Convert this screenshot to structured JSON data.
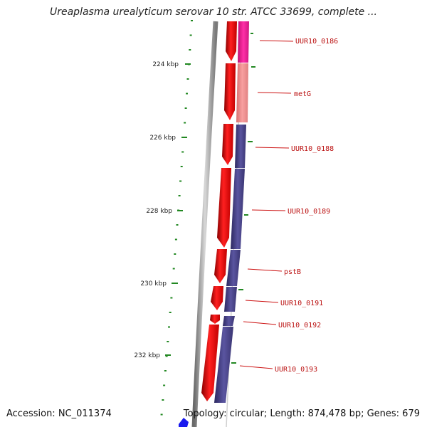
{
  "title": "Ureaplasma urealyticum serovar 10 str. ATCC 33699, complete ...",
  "footer": {
    "accession": "Accession: NC_011374",
    "stats": "Topology: circular; Length: 874,478 bp; Genes: 679"
  },
  "colors": {
    "forward_gene": "#ee1111",
    "reverse_gene": "#48438a",
    "magenta_gene": "#f0209a",
    "salmon_gene": "#f08c8c",
    "backbone": "#8a8a8a",
    "tick": "#228822",
    "label_line": "#cc1111",
    "label_text": "#bb1111",
    "blue_marker": "#1a1aee"
  },
  "ruler": {
    "ticks": [
      "224 kbp",
      "226 kbp",
      "228 kbp",
      "230 kbp",
      "232 kbp"
    ]
  },
  "genes": [
    {
      "label": "UUR10_0186",
      "color": "magenta"
    },
    {
      "label": "metG",
      "color": "salmon"
    },
    {
      "label": "UUR10_0188",
      "color": "reverse"
    },
    {
      "label": "UUR10_0189",
      "color": "reverse"
    },
    {
      "label": "pstB",
      "color": "reverse"
    },
    {
      "label": "UUR10_0191",
      "color": "reverse"
    },
    {
      "label": "UUR10_0192",
      "color": "reverse"
    },
    {
      "label": "UUR10_0193",
      "color": "reverse"
    }
  ]
}
